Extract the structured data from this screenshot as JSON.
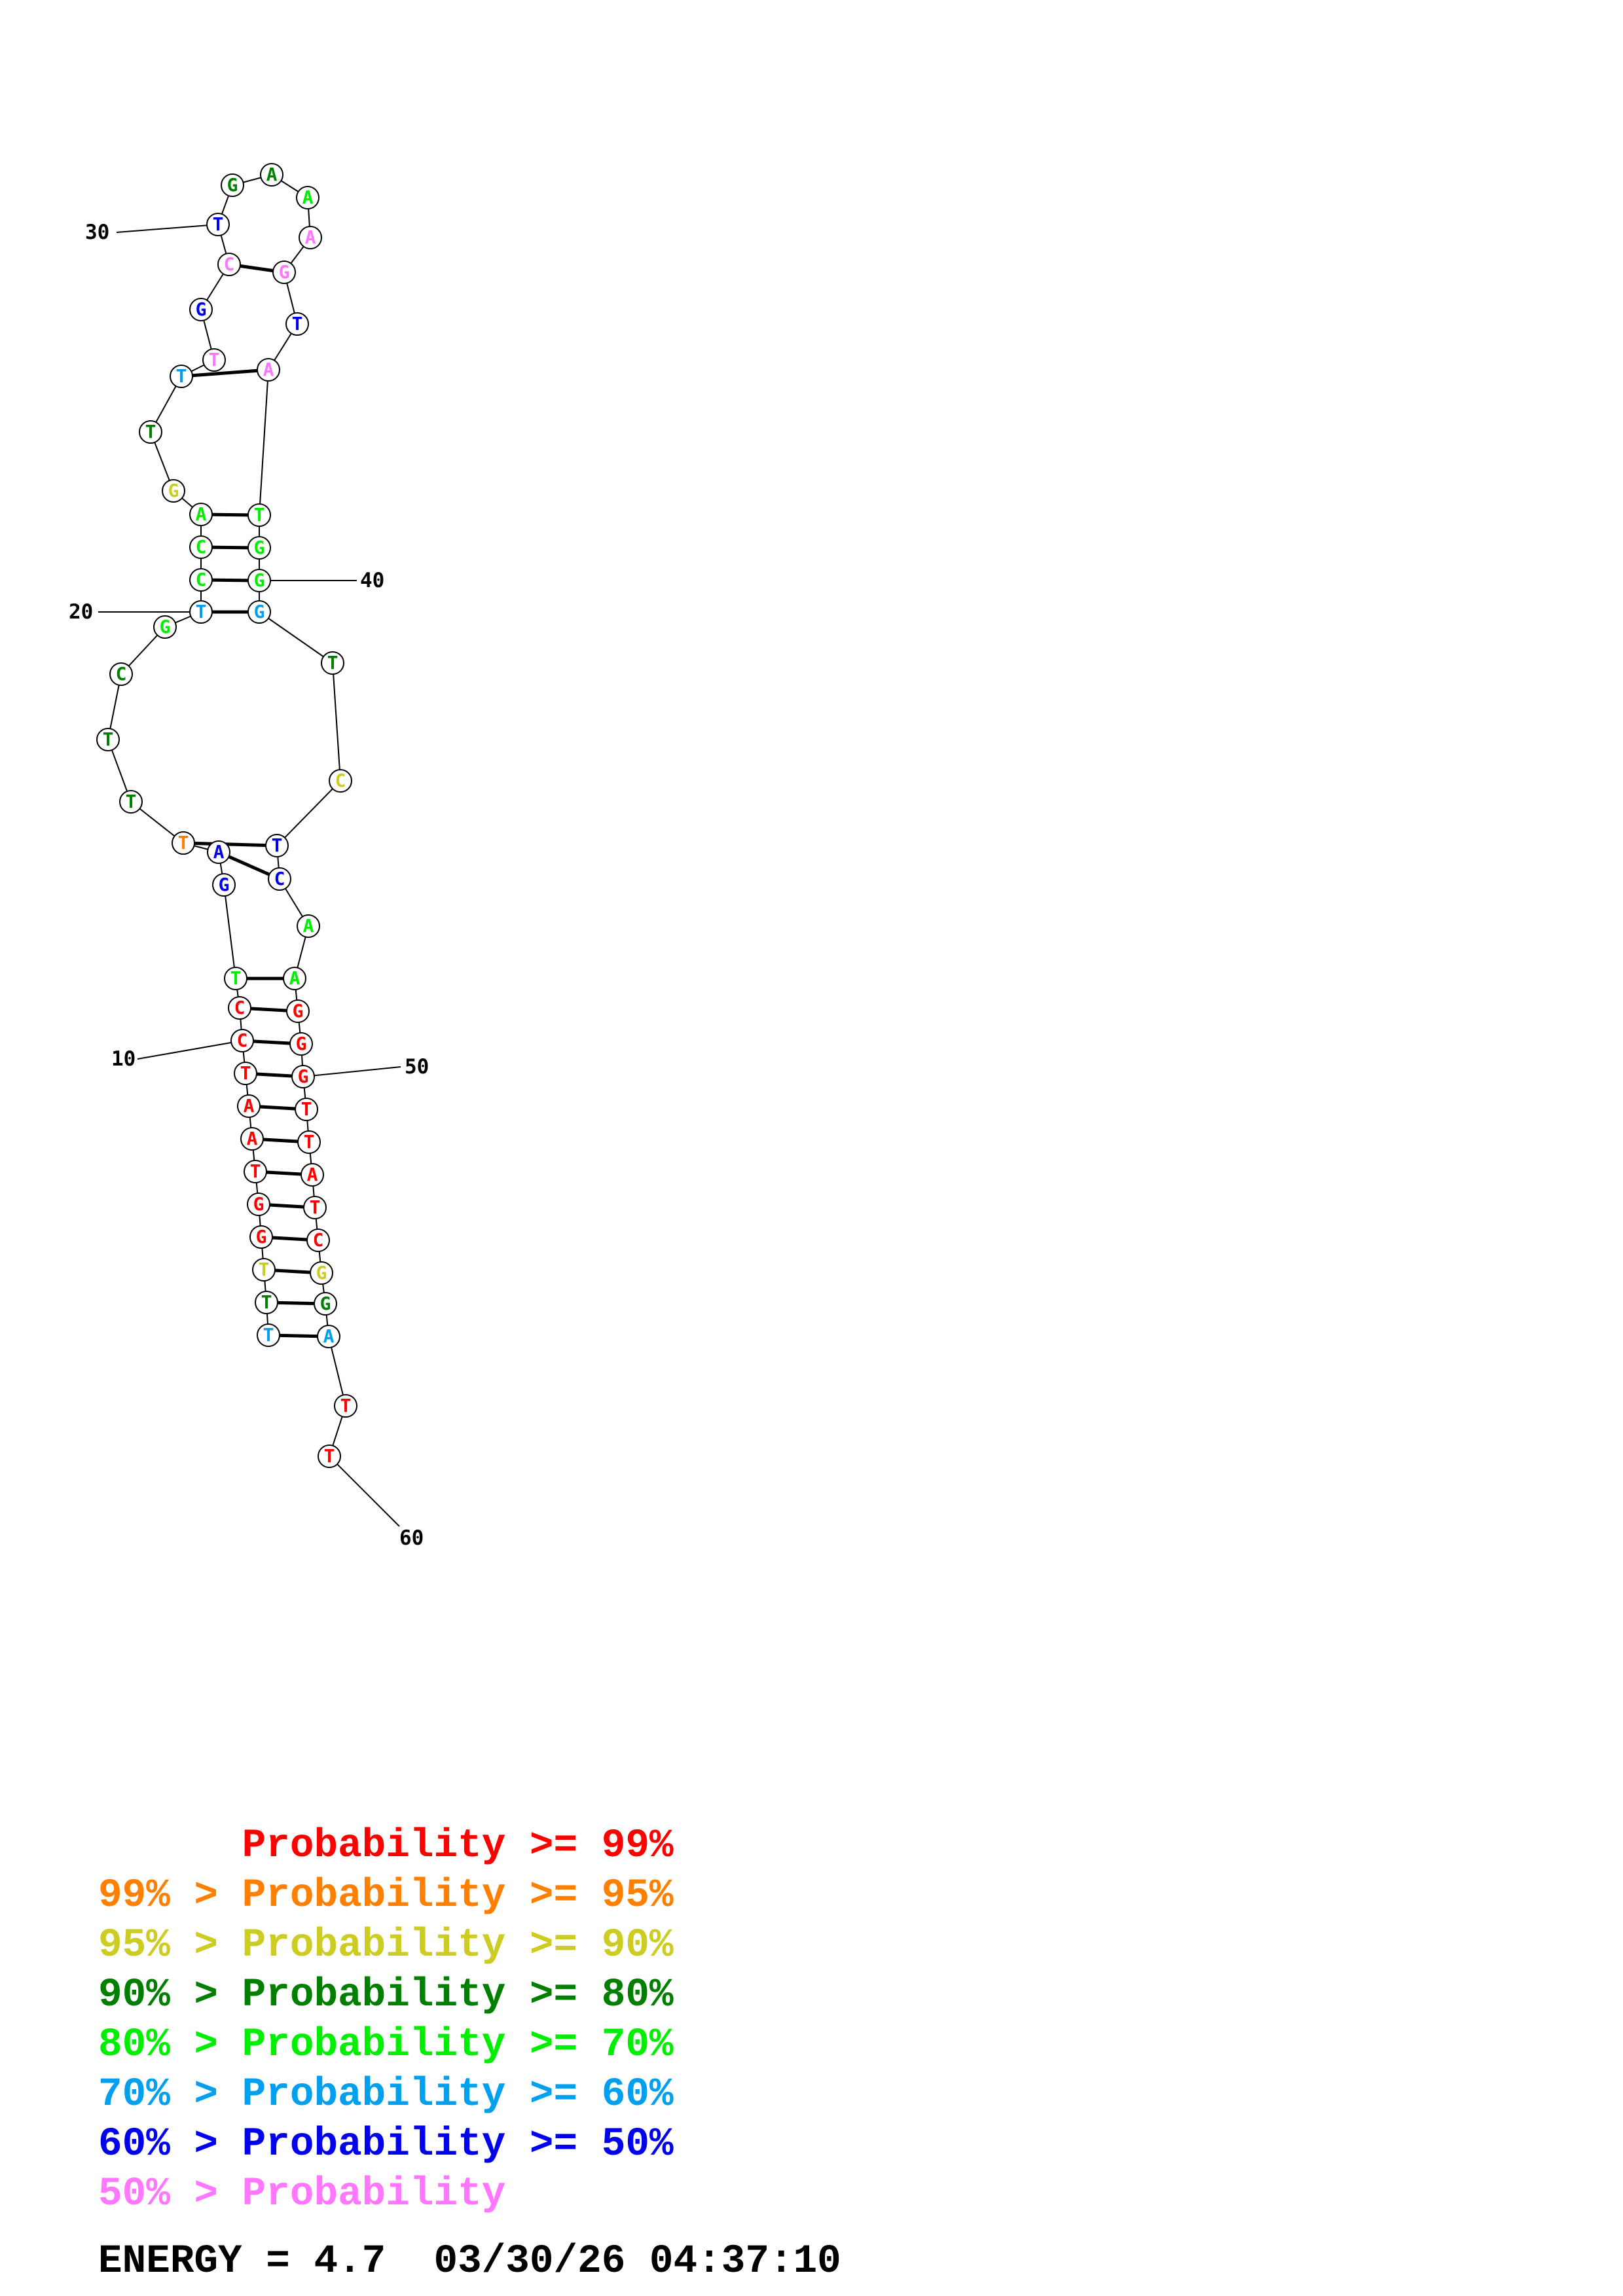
{
  "structure": {
    "bases": [
      {
        "n": 1,
        "base": "T",
        "tier": 6
      },
      {
        "n": 2,
        "base": "T",
        "tier": 4
      },
      {
        "n": 3,
        "base": "T",
        "tier": 3
      },
      {
        "n": 4,
        "base": "G",
        "tier": 1
      },
      {
        "n": 5,
        "base": "G",
        "tier": 1
      },
      {
        "n": 6,
        "base": "T",
        "tier": 1
      },
      {
        "n": 7,
        "base": "A",
        "tier": 1
      },
      {
        "n": 8,
        "base": "A",
        "tier": 1
      },
      {
        "n": 9,
        "base": "T",
        "tier": 1
      },
      {
        "n": 10,
        "base": "C",
        "tier": 1
      },
      {
        "n": 11,
        "base": "C",
        "tier": 1
      },
      {
        "n": 12,
        "base": "T",
        "tier": 5
      },
      {
        "n": 13,
        "base": "G",
        "tier": 7
      },
      {
        "n": 14,
        "base": "A",
        "tier": 7
      },
      {
        "n": 15,
        "base": "T",
        "tier": 2
      },
      {
        "n": 16,
        "base": "T",
        "tier": 4
      },
      {
        "n": 17,
        "base": "T",
        "tier": 4
      },
      {
        "n": 18,
        "base": "C",
        "tier": 4
      },
      {
        "n": 19,
        "base": "G",
        "tier": 5
      },
      {
        "n": 20,
        "base": "T",
        "tier": 6
      },
      {
        "n": 21,
        "base": "C",
        "tier": 5
      },
      {
        "n": 22,
        "base": "C",
        "tier": 5
      },
      {
        "n": 23,
        "base": "A",
        "tier": 5
      },
      {
        "n": 24,
        "base": "G",
        "tier": 3
      },
      {
        "n": 25,
        "base": "T",
        "tier": 4
      },
      {
        "n": 26,
        "base": "T",
        "tier": 6
      },
      {
        "n": 27,
        "base": "T",
        "tier": 8
      },
      {
        "n": 28,
        "base": "G",
        "tier": 7
      },
      {
        "n": 29,
        "base": "C",
        "tier": 8
      },
      {
        "n": 30,
        "base": "T",
        "tier": 7
      },
      {
        "n": 31,
        "base": "G",
        "tier": 4
      },
      {
        "n": 32,
        "base": "A",
        "tier": 4
      },
      {
        "n": 33,
        "base": "A",
        "tier": 5
      },
      {
        "n": 34,
        "base": "A",
        "tier": 8
      },
      {
        "n": 35,
        "base": "G",
        "tier": 8
      },
      {
        "n": 36,
        "base": "T",
        "tier": 7
      },
      {
        "n": 37,
        "base": "A",
        "tier": 8
      },
      {
        "n": 38,
        "base": "T",
        "tier": 5
      },
      {
        "n": 39,
        "base": "G",
        "tier": 5
      },
      {
        "n": 40,
        "base": "G",
        "tier": 5
      },
      {
        "n": 41,
        "base": "G",
        "tier": 6
      },
      {
        "n": 42,
        "base": "T",
        "tier": 4
      },
      {
        "n": 43,
        "base": "C",
        "tier": 3
      },
      {
        "n": 44,
        "base": "T",
        "tier": 7
      },
      {
        "n": 45,
        "base": "C",
        "tier": 7
      },
      {
        "n": 46,
        "base": "A",
        "tier": 5
      },
      {
        "n": 47,
        "base": "A",
        "tier": 5
      },
      {
        "n": 48,
        "base": "G",
        "tier": 1
      },
      {
        "n": 49,
        "base": "G",
        "tier": 1
      },
      {
        "n": 50,
        "base": "G",
        "tier": 1
      },
      {
        "n": 51,
        "base": "T",
        "tier": 1
      },
      {
        "n": 52,
        "base": "T",
        "tier": 1
      },
      {
        "n": 53,
        "base": "A",
        "tier": 1
      },
      {
        "n": 54,
        "base": "T",
        "tier": 1
      },
      {
        "n": 55,
        "base": "C",
        "tier": 1
      },
      {
        "n": 56,
        "base": "G",
        "tier": 3
      },
      {
        "n": 57,
        "base": "G",
        "tier": 4
      },
      {
        "n": 58,
        "base": "A",
        "tier": 6
      },
      {
        "n": 59,
        "base": "T",
        "tier": 1
      },
      {
        "n": 60,
        "base": "T",
        "tier": 1
      }
    ],
    "pairs": [
      [
        1,
        58
      ],
      [
        2,
        57
      ],
      [
        3,
        56
      ],
      [
        4,
        55
      ],
      [
        5,
        54
      ],
      [
        6,
        53
      ],
      [
        7,
        52
      ],
      [
        8,
        51
      ],
      [
        9,
        50
      ],
      [
        10,
        49
      ],
      [
        11,
        48
      ],
      [
        12,
        47
      ],
      [
        14,
        45
      ],
      [
        15,
        44
      ],
      [
        20,
        41
      ],
      [
        21,
        40
      ],
      [
        22,
        39
      ],
      [
        23,
        38
      ],
      [
        26,
        37
      ],
      [
        29,
        35
      ]
    ],
    "position_labels": [
      {
        "n": 10,
        "text": "10"
      },
      {
        "n": 20,
        "text": "20"
      },
      {
        "n": 30,
        "text": "30"
      },
      {
        "n": 40,
        "text": "40"
      },
      {
        "n": 50,
        "text": "50"
      },
      {
        "n": 60,
        "text": "60"
      }
    ]
  },
  "legend": {
    "tiers": [
      {
        "tier": 1,
        "prefix": "",
        "label": "Probability",
        "suffix": " >= 99%",
        "color": "#ff0000"
      },
      {
        "tier": 2,
        "prefix": "99% > ",
        "label": "Probability",
        "suffix": " >= 95%",
        "color": "#ff7f00"
      },
      {
        "tier": 3,
        "prefix": "95% > ",
        "label": "Probability",
        "suffix": " >= 90%",
        "color": "#cccc22"
      },
      {
        "tier": 4,
        "prefix": "90% > ",
        "label": "Probability",
        "suffix": " >= 80%",
        "color": "#007f00"
      },
      {
        "tier": 5,
        "prefix": "80% > ",
        "label": "Probability",
        "suffix": " >= 70%",
        "color": "#00ee00"
      },
      {
        "tier": 6,
        "prefix": "70% > ",
        "label": "Probability",
        "suffix": " >= 60%",
        "color": "#00a0ee"
      },
      {
        "tier": 7,
        "prefix": "60% > ",
        "label": "Probability",
        "suffix": " >= 50%",
        "color": "#0000ee"
      },
      {
        "tier": 8,
        "prefix": "50% > ",
        "label": "Probability",
        "suffix": "",
        "color": "#ff77ff"
      }
    ]
  },
  "energy_line": "ENERGY = 4.7  03/30/26 04:37:10"
}
